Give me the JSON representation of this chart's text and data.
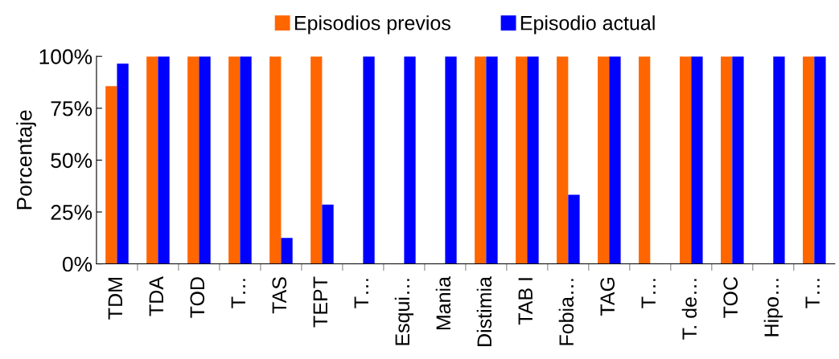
{
  "chart_data": {
    "type": "bar",
    "ylabel": "Porcentaje",
    "categories": [
      "TDM",
      "TDA",
      "TOD",
      "T…",
      "TAS",
      "TEPT",
      "T…",
      "Esqui…",
      "Mania",
      "Distimia",
      "TAB I",
      "Fobia…",
      "TAG",
      "T…",
      "T. de…",
      "TOC",
      "Hipo…",
      "T…"
    ],
    "series": [
      {
        "name": "Episodios previos",
        "color": "#ff6600",
        "values": [
          85.7,
          100,
          100,
          100,
          100,
          100,
          0,
          0,
          0,
          100,
          100,
          100,
          100,
          100,
          100,
          100,
          0,
          100
        ]
      },
      {
        "name": "Episodio actual",
        "color": "#0000ff",
        "values": [
          96.5,
          100,
          100,
          100,
          12.5,
          28.6,
          100,
          100,
          100,
          100,
          100,
          33.3,
          100,
          0,
          100,
          100,
          100,
          100
        ]
      }
    ],
    "ylim": [
      0,
      100
    ],
    "yticks": [
      {
        "value": 0,
        "label": "0%"
      },
      {
        "value": 25,
        "label": "25%"
      },
      {
        "value": 50,
        "label": "50%"
      },
      {
        "value": 75,
        "label": "75%"
      },
      {
        "value": 100,
        "label": "100%"
      }
    ],
    "grid": false,
    "legend": "top"
  }
}
